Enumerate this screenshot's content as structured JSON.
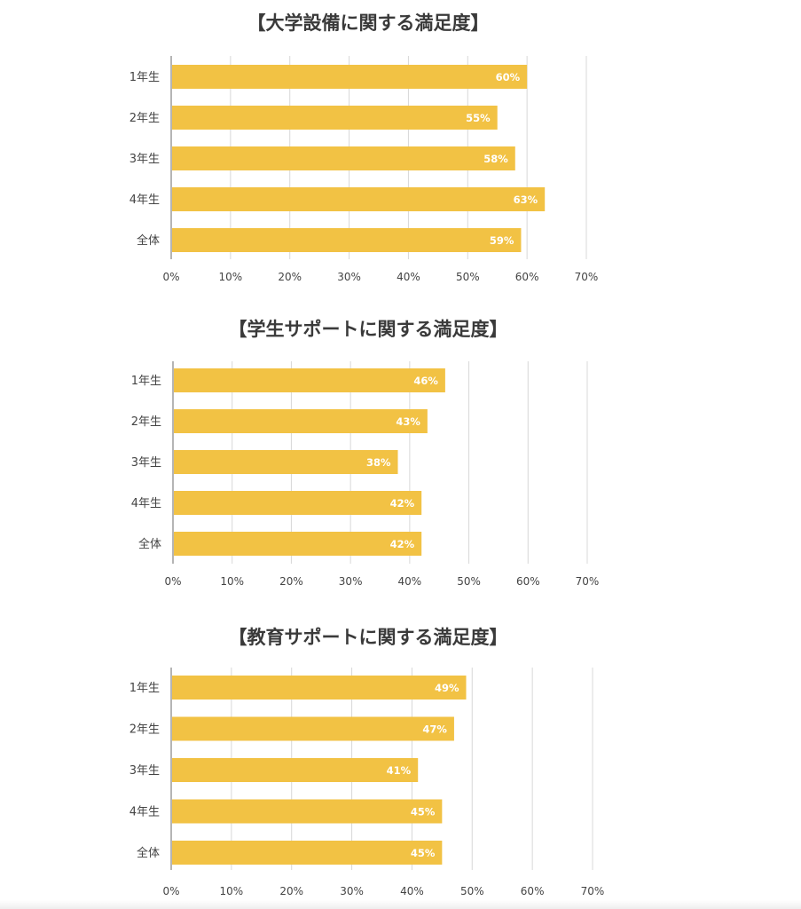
{
  "chart_data": [
    {
      "type": "bar",
      "orientation": "horizontal",
      "title": "【大学設備に関する満足度】",
      "categories": [
        "1年生",
        "2年生",
        "3年生",
        "4年生",
        "全体"
      ],
      "values": [
        60,
        55,
        58,
        63,
        59
      ],
      "data_labels": [
        "60%",
        "55%",
        "58%",
        "63%",
        "59%"
      ],
      "xlim": [
        0,
        70
      ],
      "x_ticks": [
        "0%",
        "10%",
        "20%",
        "30%",
        "40%",
        "50%",
        "60%",
        "70%"
      ],
      "grid": true,
      "bar_color": "#F2C244",
      "label_color": "#ffffff"
    },
    {
      "type": "bar",
      "orientation": "horizontal",
      "title": "【学生サポートに関する満足度】",
      "categories": [
        "1年生",
        "2年生",
        "3年生",
        "4年生",
        "全体"
      ],
      "values": [
        46,
        43,
        38,
        42,
        42
      ],
      "data_labels": [
        "46%",
        "43%",
        "38%",
        "42%",
        "42%"
      ],
      "xlim": [
        0,
        70
      ],
      "x_ticks": [
        "0%",
        "10%",
        "20%",
        "30%",
        "40%",
        "50%",
        "60%",
        "70%"
      ],
      "grid": true,
      "bar_color": "#F2C244",
      "label_color": "#ffffff"
    },
    {
      "type": "bar",
      "orientation": "horizontal",
      "title": "【教育サポートに関する満足度】",
      "categories": [
        "1年生",
        "2年生",
        "3年生",
        "4年生",
        "全体"
      ],
      "values": [
        49,
        47,
        41,
        45,
        45
      ],
      "data_labels": [
        "49%",
        "47%",
        "41%",
        "45%",
        "45%"
      ],
      "xlim": [
        0,
        70
      ],
      "x_ticks": [
        "0%",
        "10%",
        "20%",
        "30%",
        "40%",
        "50%",
        "60%",
        "70%"
      ],
      "grid": true,
      "bar_color": "#F2C244",
      "label_color": "#ffffff"
    }
  ]
}
